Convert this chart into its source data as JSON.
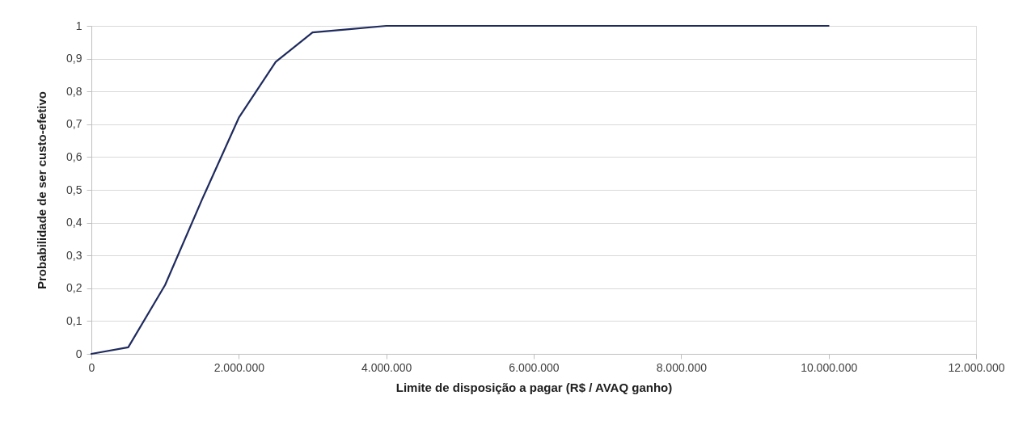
{
  "chart_data": {
    "type": "line",
    "xlabel": "Limite de disposição a pagar (R$ / AVAQ ganho)",
    "ylabel": "Probabilidade de ser custo-efetivo",
    "x": [
      0,
      500000,
      1000000,
      1500000,
      2000000,
      2500000,
      3000000,
      3500000,
      4000000,
      4500000,
      5000000,
      5500000,
      6000000,
      6500000,
      7000000,
      7500000,
      8000000,
      8500000,
      9000000,
      9500000,
      10000000
    ],
    "series": [
      {
        "color": "#1f2b5e",
        "values": [
          0,
          0.02,
          0.21,
          0.47,
          0.72,
          0.89,
          0.98,
          0.99,
          1,
          1,
          1,
          1,
          1,
          1,
          1,
          1,
          1,
          1,
          1,
          1,
          1
        ]
      }
    ],
    "xlim": [
      0,
      12000000
    ],
    "xticks": [
      0,
      {
        "value": 2000000,
        "label": "2.000.000"
      },
      {
        "value": 4000000,
        "label": "4.000.000"
      },
      {
        "value": 6000000,
        "label": "6.000.000"
      },
      {
        "value": 8000000,
        "label": "8.000.000"
      },
      {
        "value": 10000000,
        "label": "10.000.000"
      },
      {
        "value": 12000000,
        "label": "12.000.000"
      }
    ],
    "ylim": [
      0,
      1
    ],
    "yticks": [
      0,
      {
        "value": 0.1,
        "label": "0,1"
      },
      {
        "value": 0.2,
        "label": "0,2"
      },
      {
        "value": 0.3,
        "label": "0,3"
      },
      {
        "value": 0.4,
        "label": "0,4"
      },
      {
        "value": 0.5,
        "label": "0,5"
      },
      {
        "value": 0.6,
        "label": "0,6"
      },
      {
        "value": 0.7,
        "label": "0,7"
      },
      {
        "value": 0.8,
        "label": "0,8"
      },
      {
        "value": 0.9,
        "label": "0,9"
      },
      1
    ],
    "grid": "y",
    "legend": false,
    "marker": "none",
    "line_style": "solid"
  }
}
